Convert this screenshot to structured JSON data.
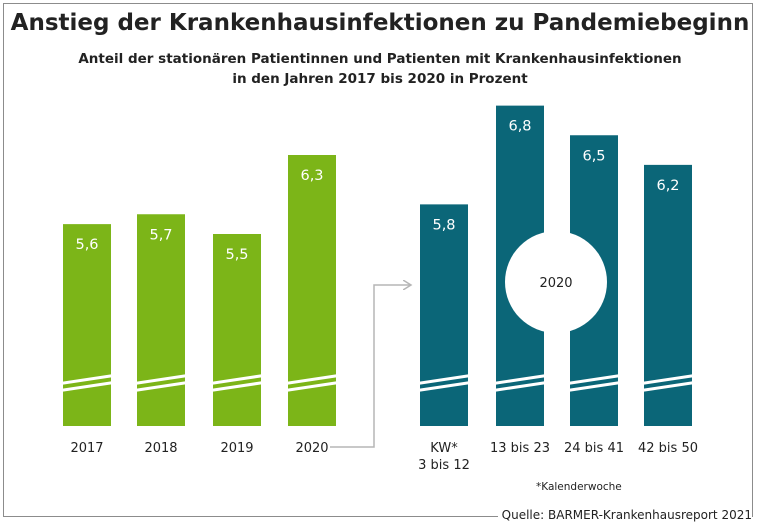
{
  "title": "Anstieg der Krankenhausinfektionen zu Pandemiebeginn",
  "subtitle_line1": "Anteil der stationären Patientinnen und Patienten mit Krankenhausinfektionen",
  "subtitle_line2": "in den Jahren 2017 bis 2020 in Prozent",
  "source": "Quelle: BARMER-Krankenhausreport 2021",
  "footnote": "*Kalenderwoche",
  "circle_label": "2020",
  "colors": {
    "green": "#7cb518",
    "teal": "#0b6678",
    "arrow": "#b5b5b5",
    "text": "#222222"
  },
  "chart_data": [
    {
      "type": "bar",
      "categories": [
        [
          "2017"
        ],
        [
          "2018"
        ],
        [
          "2019"
        ],
        [
          "2020"
        ]
      ],
      "values": [
        5.6,
        5.7,
        5.5,
        6.3
      ],
      "value_labels": [
        "5,6",
        "5,7",
        "5,5",
        "6,3"
      ],
      "color": "#7cb518",
      "y_axis_broken": true
    },
    {
      "type": "bar",
      "categories": [
        [
          "KW*",
          "3 bis 12"
        ],
        [
          "13 bis 23"
        ],
        [
          "24 bis 41"
        ],
        [
          "42 bis 50"
        ]
      ],
      "values": [
        5.8,
        6.8,
        6.5,
        6.2
      ],
      "value_labels": [
        "5,8",
        "6,8",
        "6,5",
        "6,2"
      ],
      "color": "#0b6678",
      "y_axis_broken": true
    }
  ]
}
